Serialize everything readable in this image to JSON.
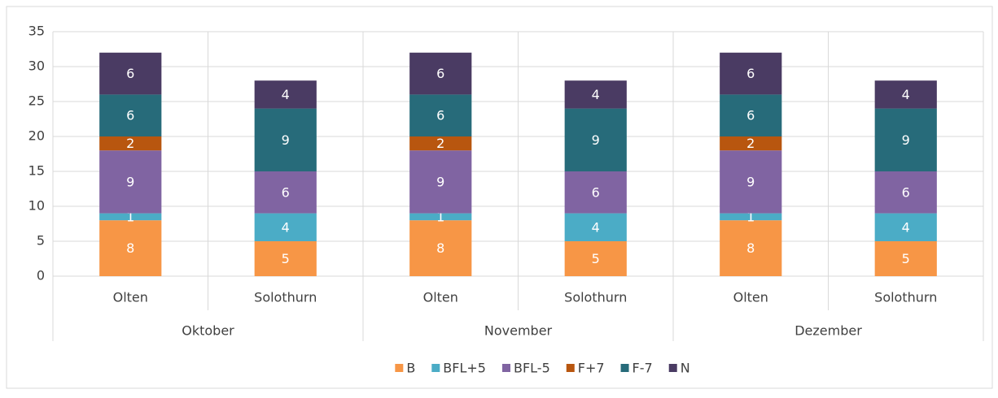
{
  "chart_data": {
    "type": "stacked_bar",
    "categories": [
      "Olten",
      "Solothurn",
      "Olten",
      "Solothurn",
      "Olten",
      "Solothurn"
    ],
    "groups": [
      "Oktober",
      "November",
      "Dezember"
    ],
    "series": [
      {
        "name": "B",
        "color": "#f79646",
        "values": [
          8,
          5,
          8,
          5,
          8,
          5
        ]
      },
      {
        "name": "BFL+5",
        "color": "#4bacc6",
        "values": [
          1,
          4,
          1,
          4,
          1,
          4
        ]
      },
      {
        "name": "BFL-5",
        "color": "#8064a2",
        "values": [
          9,
          6,
          9,
          6,
          9,
          6
        ]
      },
      {
        "name": "F+7",
        "color": "#b8560f",
        "values": [
          2,
          null,
          2,
          null,
          2,
          null
        ]
      },
      {
        "name": "F-7",
        "color": "#276b7a",
        "values": [
          6,
          9,
          6,
          9,
          6,
          9
        ]
      },
      {
        "name": "N",
        "color": "#4a3b63",
        "values": [
          6,
          4,
          6,
          4,
          6,
          4
        ]
      }
    ],
    "ylim": [
      0,
      35
    ],
    "yticks": [
      0,
      5,
      10,
      15,
      20,
      25,
      30,
      35
    ],
    "grid": true,
    "legend": "bottom"
  }
}
